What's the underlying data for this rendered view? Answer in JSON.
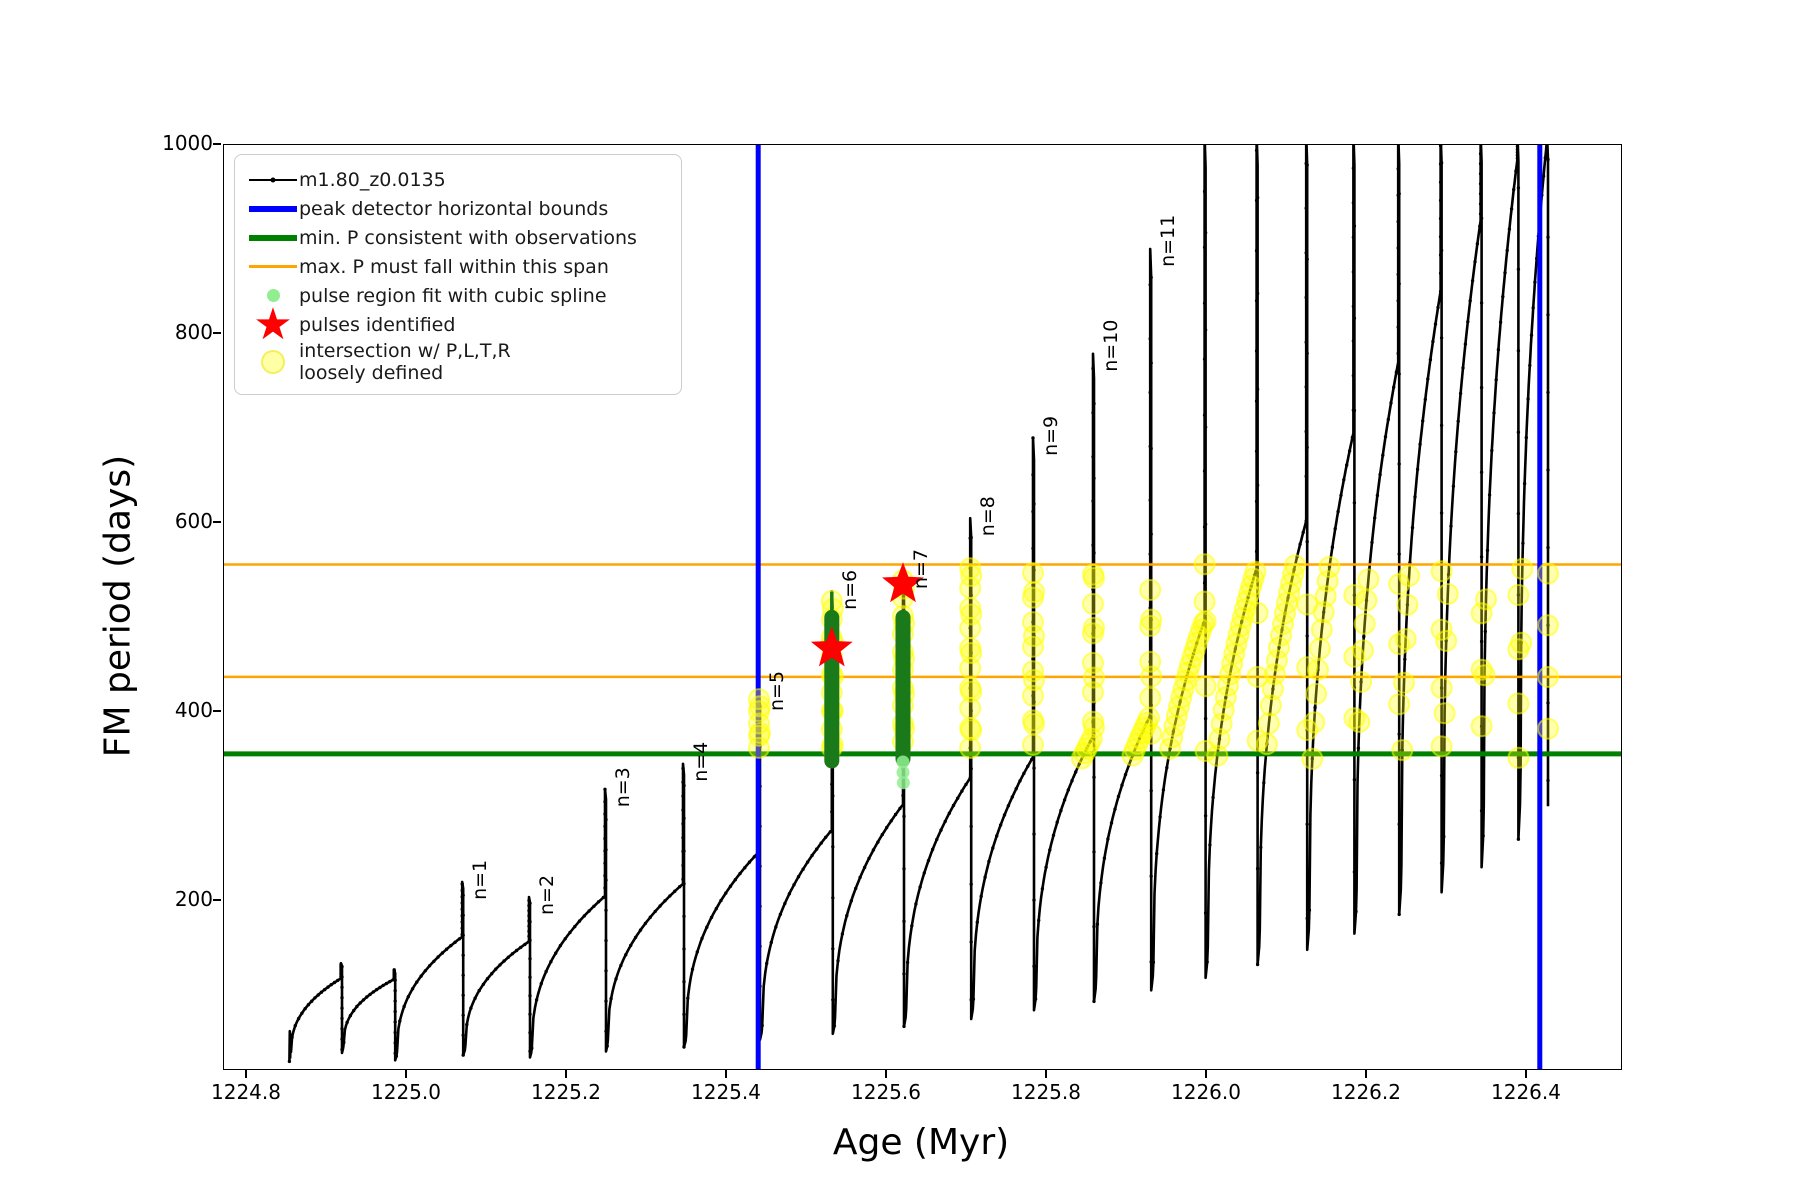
{
  "legend": {
    "entries": [
      {
        "label": "m1.80_z0.0135",
        "color": "#000000",
        "marker": "line-with-dot"
      },
      {
        "label": "peak detector horizontal bounds",
        "color": "#0000ff",
        "marker": "thick-line"
      },
      {
        "label": "min. P consistent with observations",
        "color": "#008000",
        "marker": "thick-line"
      },
      {
        "label": "max. P must fall within this span",
        "color": "#ffa500",
        "marker": "line"
      },
      {
        "label": "pulse region fit with cubic spline",
        "color": "#90ee90",
        "marker": "dot"
      },
      {
        "label": "pulses identified",
        "color": "#ff0000",
        "marker": "star"
      },
      {
        "label": "intersection w/ P,L,T,R",
        "label_line2": "loosely defined",
        "color": "rgba(255,255,0,0.35)",
        "marker": "big-dot"
      }
    ]
  },
  "chart_data": {
    "type": "line",
    "title": "",
    "xlabel": "Age (Myr)",
    "ylabel": "FM period (days)",
    "xlim": [
      1224.77125,
      1226.5175
    ],
    "ylim": [
      22,
      1000
    ],
    "grid": false,
    "xticks": {
      "values": [
        1224.8,
        1225.0,
        1225.2,
        1225.4,
        1225.6,
        1225.8,
        1226.0,
        1226.2,
        1226.4
      ],
      "labels": [
        "1224.8",
        "1225.0",
        "1225.2",
        "1225.4",
        "1225.6",
        "1225.8",
        "1226.0",
        "1226.2",
        "1226.4"
      ]
    },
    "yticks": {
      "values": [
        200,
        400,
        600,
        800,
        1000
      ],
      "labels": [
        "200",
        "400",
        "600",
        "800",
        "1000"
      ]
    },
    "series_name": "m1.80_z0.0135",
    "series_color": "#000000",
    "prefix_points": [
      [
        1224.853,
        30
      ],
      [
        1224.8535,
        62
      ],
      [
        1224.854,
        34
      ],
      [
        1224.8545,
        58
      ],
      [
        1224.855,
        40
      ]
    ],
    "cycles": [
      {
        "t0": 1224.855,
        "p0": 40,
        "t1": 1224.9175,
        "p1": 118,
        "ps": 134
      },
      {
        "t0": 1224.921,
        "p0": 50,
        "t1": 1224.984,
        "p1": 117,
        "ps": 127
      },
      {
        "t0": 1224.9875,
        "p0": 40,
        "t1": 1225.069,
        "p1": 162,
        "ps": 220,
        "n": "n=1"
      },
      {
        "t0": 1225.073,
        "p0": 47,
        "t1": 1225.1525,
        "p1": 157,
        "ps": 204,
        "n": "n=2"
      },
      {
        "t0": 1225.156,
        "p0": 44,
        "t1": 1225.2475,
        "p1": 205,
        "ps": 318,
        "n": "n=3"
      },
      {
        "t0": 1225.251,
        "p0": 52,
        "t1": 1225.345,
        "p1": 218,
        "ps": 345,
        "n": "n=4"
      },
      {
        "t0": 1225.349,
        "p0": 58,
        "t1": 1225.44,
        "p1": 252,
        "ps": 420,
        "n": "n=5"
      },
      {
        "t0": 1225.444,
        "p0": 68,
        "t1": 1225.531,
        "p1": 275,
        "ps": 527,
        "n": "n=6"
      },
      {
        "t0": 1225.535,
        "p0": 76,
        "t1": 1225.62,
        "p1": 302,
        "ps": 549,
        "n": "n=7"
      },
      {
        "t0": 1225.624,
        "p0": 86,
        "t1": 1225.704,
        "p1": 330,
        "ps": 605,
        "n": "n=8"
      },
      {
        "t0": 1225.708,
        "p0": 96,
        "t1": 1225.7825,
        "p1": 352,
        "ps": 690,
        "n": "n=9"
      },
      {
        "t0": 1225.7865,
        "p0": 108,
        "t1": 1225.8575,
        "p1": 374,
        "ps": 779,
        "n": "n=10"
      },
      {
        "t0": 1225.8615,
        "p0": 120,
        "t1": 1225.929,
        "p1": 396,
        "ps": 890,
        "n": "n=11"
      },
      {
        "t0": 1225.933,
        "p0": 135,
        "t1": 1225.997,
        "p1": 497,
        "ps": 1010
      },
      {
        "t0": 1226.001,
        "p0": 152,
        "t1": 1226.062,
        "p1": 552,
        "ps": 1012
      },
      {
        "t0": 1226.066,
        "p0": 170,
        "t1": 1226.124,
        "p1": 602,
        "ps": 1012
      },
      {
        "t0": 1226.128,
        "p0": 190,
        "t1": 1226.183,
        "p1": 695,
        "ps": 1012
      },
      {
        "t0": 1226.187,
        "p0": 212,
        "t1": 1226.239,
        "p1": 770,
        "ps": 1012
      },
      {
        "t0": 1226.243,
        "p0": 238,
        "t1": 1226.292,
        "p1": 845,
        "ps": 1012
      },
      {
        "t0": 1226.296,
        "p0": 268,
        "t1": 1226.342,
        "p1": 920,
        "ps": 1012
      },
      {
        "t0": 1226.346,
        "p0": 302,
        "t1": 1226.388,
        "p1": 985,
        "ps": 1012
      },
      {
        "t0": 1226.392,
        "p0": 340,
        "t1": 1226.425,
        "p1": 1005,
        "ps": 1012
      }
    ],
    "hlines": [
      {
        "value": 556,
        "color": "#ffa500",
        "width": 2.5,
        "name": "max-P-span-upper"
      },
      {
        "value": 437,
        "color": "#ffa500",
        "width": 2.5,
        "name": "max-P-span-lower"
      },
      {
        "value": 355.5,
        "color": "#008000",
        "width": 5,
        "name": "min-P-observed"
      }
    ],
    "vlines": [
      {
        "age": 1225.439,
        "color": "#0000ff",
        "width": 5,
        "name": "peak-detector-left-bound"
      },
      {
        "age": 1226.416,
        "color": "#0000ff",
        "width": 5,
        "name": "peak-detector-right-bound"
      }
    ],
    "yellow_band": {
      "p_min": 350,
      "p_max": 557,
      "age_min": 1225.432,
      "age_max": 1226.43,
      "color": "#ffff00",
      "radius": 10,
      "opacity": 0.32
    },
    "green_segments": [
      {
        "age": 1225.531,
        "thick_from": 348,
        "thick_to": 500,
        "thin_from": 500,
        "thin_to": 527
      },
      {
        "age": 1225.62,
        "thick_from": 350,
        "thick_to": 500,
        "thin_from": null,
        "thin_to": null
      }
    ],
    "green_segment_color": "#1a7a1a",
    "spline_dots": {
      "color": "#90ee90",
      "points": [
        [
          1225.62,
          347
        ],
        [
          1225.62,
          336
        ],
        [
          1225.6205,
          325
        ]
      ]
    },
    "pulses": {
      "color": "#ff0000",
      "size": 22,
      "points": [
        [
          1225.531,
          467
        ],
        [
          1225.62,
          535
        ]
      ]
    }
  }
}
